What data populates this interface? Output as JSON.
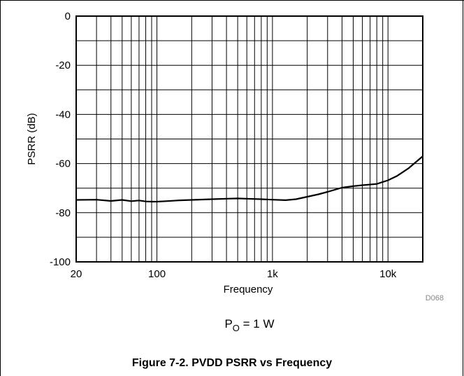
{
  "chart_data": {
    "type": "line",
    "xlabel": "Frequency",
    "ylabel": "PSRR (dB)",
    "xscale": "log",
    "xlim": [
      20,
      20000
    ],
    "ylim": [
      -100,
      0
    ],
    "grid": true,
    "x_ticks": [
      20,
      100,
      1000,
      10000
    ],
    "x_tick_labels": [
      "20",
      "100",
      "1k",
      "10k"
    ],
    "y_ticks": [
      0,
      -20,
      -40,
      -60,
      -80,
      -100
    ],
    "y_tick_labels": [
      "0",
      "-20",
      "-40",
      "-60",
      "-80",
      "-100"
    ],
    "series": [
      {
        "color": "#000000",
        "x": [
          20,
          30,
          40,
          50,
          60,
          70,
          80,
          90,
          100,
          120,
          150,
          200,
          300,
          400,
          500,
          600,
          800,
          1000,
          1300,
          1600,
          2000,
          2500,
          3000,
          4000,
          5000,
          6000,
          8000,
          10000,
          12000,
          15000,
          20000
        ],
        "y": [
          -74.8,
          -74.7,
          -75.2,
          -74.8,
          -75.3,
          -75.0,
          -75.4,
          -75.5,
          -75.5,
          -75.3,
          -75.0,
          -74.8,
          -74.5,
          -74.3,
          -74.2,
          -74.3,
          -74.5,
          -74.7,
          -74.9,
          -74.5,
          -73.5,
          -72.5,
          -71.5,
          -69.8,
          -69.2,
          -68.8,
          -68.3,
          -66.8,
          -65.0,
          -62.0,
          -57.0
        ]
      }
    ]
  },
  "code_label": "D068",
  "condition": {
    "main": "P",
    "sub": "O",
    "rest": " = 1 W"
  },
  "caption": "Figure 7-2. PVDD PSRR vs Frequency"
}
